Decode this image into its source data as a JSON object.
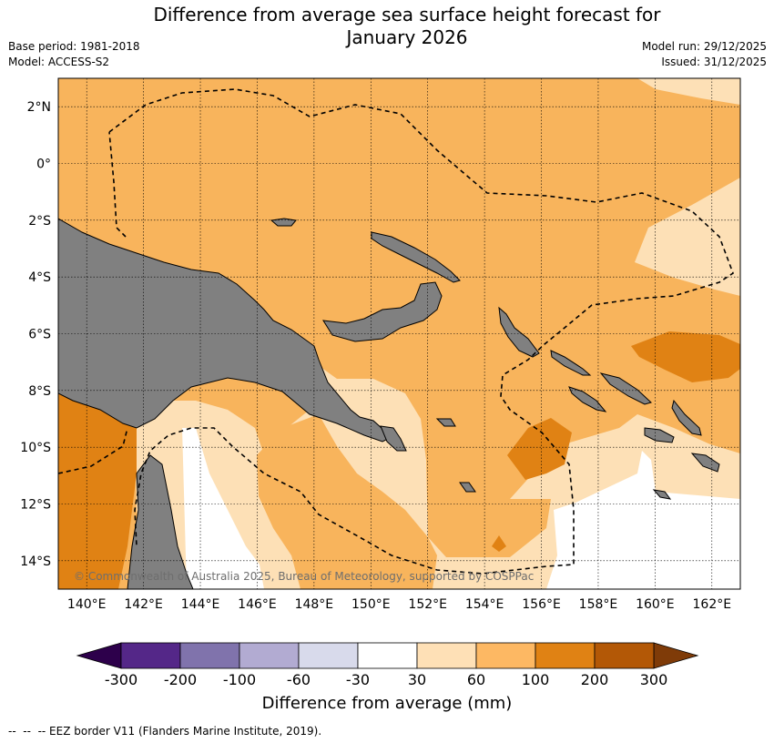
{
  "title_line1": "Difference from average sea surface height forecast for",
  "title_line2": "January 2026",
  "base_period": "Base period: 1981-2018",
  "model": "Model: ACCESS-S2",
  "model_run": "Model run: 29/12/2025",
  "issued": "Issued: 31/12/2025",
  "credit": "© Commonwealth of Australia 2025, Bureau of Meteorology, supported by COSPPac",
  "footer_legend": "--  --  -- EEZ border V11 (Flanders Marine Institute, 2019).",
  "map": {
    "lon_range": [
      139,
      163
    ],
    "lat_range": [
      -15,
      3
    ],
    "lat_ticks": [
      {
        "value": 2,
        "label": "2°N"
      },
      {
        "value": 0,
        "label": "0°"
      },
      {
        "value": -2,
        "label": "2°S"
      },
      {
        "value": -4,
        "label": "4°S"
      },
      {
        "value": -6,
        "label": "6°S"
      },
      {
        "value": -8,
        "label": "8°S"
      },
      {
        "value": -10,
        "label": "10°S"
      },
      {
        "value": -12,
        "label": "12°S"
      },
      {
        "value": -14,
        "label": "14°S"
      }
    ],
    "lon_ticks": [
      {
        "value": 140,
        "label": "140°E"
      },
      {
        "value": 142,
        "label": "142°E"
      },
      {
        "value": 144,
        "label": "144°E"
      },
      {
        "value": 146,
        "label": "146°E"
      },
      {
        "value": 148,
        "label": "148°E"
      },
      {
        "value": 150,
        "label": "150°E"
      },
      {
        "value": 152,
        "label": "152°E"
      },
      {
        "value": 154,
        "label": "154°E"
      },
      {
        "value": 156,
        "label": "156°E"
      },
      {
        "value": 158,
        "label": "158°E"
      },
      {
        "value": 160,
        "label": "160°E"
      },
      {
        "value": 162,
        "label": "162°E"
      }
    ],
    "colors": {
      "land": "#808080",
      "band_30_60": "#fde0b6",
      "band_60_100": "#f8b45c",
      "band_100_200": "#e08214",
      "band_neutral": "#ffffff"
    }
  },
  "colorbar": {
    "title": "Difference from average (mm)",
    "ticks": [
      "-300",
      "-200",
      "-100",
      "-60",
      "-30",
      "30",
      "60",
      "100",
      "200",
      "300"
    ],
    "colors": [
      "#542788",
      "#8073ac",
      "#b2abd2",
      "#d8daeb",
      "#ffffff",
      "#fee0b6",
      "#fdb863",
      "#e08214",
      "#b35806"
    ],
    "under_color": "#2d004b",
    "over_color": "#7f3b08"
  }
}
